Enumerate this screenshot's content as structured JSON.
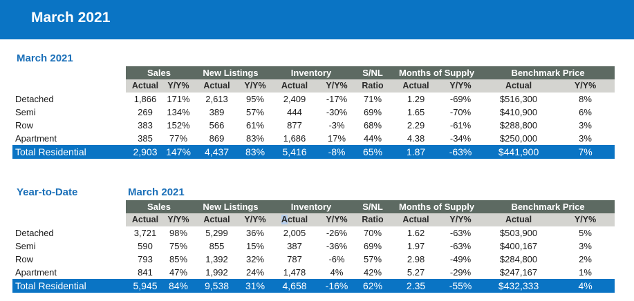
{
  "banner": {
    "title": "March 2021"
  },
  "columns": {
    "groups": [
      "Sales",
      "New Listings",
      "Inventory",
      "S/NL",
      "Months of Supply",
      "Benchmark Price"
    ],
    "sub": [
      "Actual",
      "Y/Y%",
      "Actual",
      "Y/Y%",
      "Actual",
      "Y/Y%",
      "Ratio",
      "Actual",
      "Y/Y%",
      "Actual",
      "Y/Y%"
    ]
  },
  "monthly": {
    "title": "March 2021",
    "rows": [
      {
        "label": "Detached",
        "values": [
          "1,866",
          "171%",
          "2,613",
          "95%",
          "2,409",
          "-17%",
          "71%",
          "1.29",
          "-69%",
          "$516,300",
          "8%"
        ]
      },
      {
        "label": "Semi",
        "values": [
          "269",
          "134%",
          "389",
          "57%",
          "444",
          "-30%",
          "69%",
          "1.65",
          "-70%",
          "$410,900",
          "6%"
        ]
      },
      {
        "label": "Row",
        "values": [
          "383",
          "152%",
          "566",
          "61%",
          "877",
          "-3%",
          "68%",
          "2.29",
          "-61%",
          "$288,800",
          "3%"
        ]
      },
      {
        "label": "Apartment",
        "values": [
          "385",
          "77%",
          "869",
          "83%",
          "1,686",
          "17%",
          "44%",
          "4.38",
          "-34%",
          "$250,000",
          "3%"
        ]
      }
    ],
    "total": {
      "label": "Total Residential",
      "values": [
        "2,903",
        "147%",
        "4,437",
        "83%",
        "5,416",
        "-8%",
        "65%",
        "1.87",
        "-63%",
        "$441,900",
        "7%"
      ]
    }
  },
  "ytd": {
    "title": "Year-to-Date",
    "subtitle": "March 2021",
    "rows": [
      {
        "label": "Detached",
        "values": [
          "3,721",
          "98%",
          "5,299",
          "36%",
          "2,005",
          "-26%",
          "70%",
          "1.62",
          "-63%",
          "$503,900",
          "5%"
        ]
      },
      {
        "label": "Semi",
        "values": [
          "590",
          "75%",
          "855",
          "15%",
          "387",
          "-36%",
          "69%",
          "1.97",
          "-63%",
          "$400,167",
          "3%"
        ]
      },
      {
        "label": "Row",
        "values": [
          "793",
          "85%",
          "1,392",
          "32%",
          "787",
          "-6%",
          "57%",
          "2.98",
          "-49%",
          "$284,800",
          "2%"
        ]
      },
      {
        "label": "Apartment",
        "values": [
          "841",
          "47%",
          "1,992",
          "24%",
          "1,478",
          "4%",
          "42%",
          "5.27",
          "-29%",
          "$247,167",
          "1%"
        ]
      }
    ],
    "total": {
      "label": "Total Residential",
      "values": [
        "5,945",
        "84%",
        "9,538",
        "31%",
        "4,658",
        "-16%",
        "62%",
        "2.35",
        "-55%",
        "$432,333",
        "4%"
      ]
    }
  }
}
